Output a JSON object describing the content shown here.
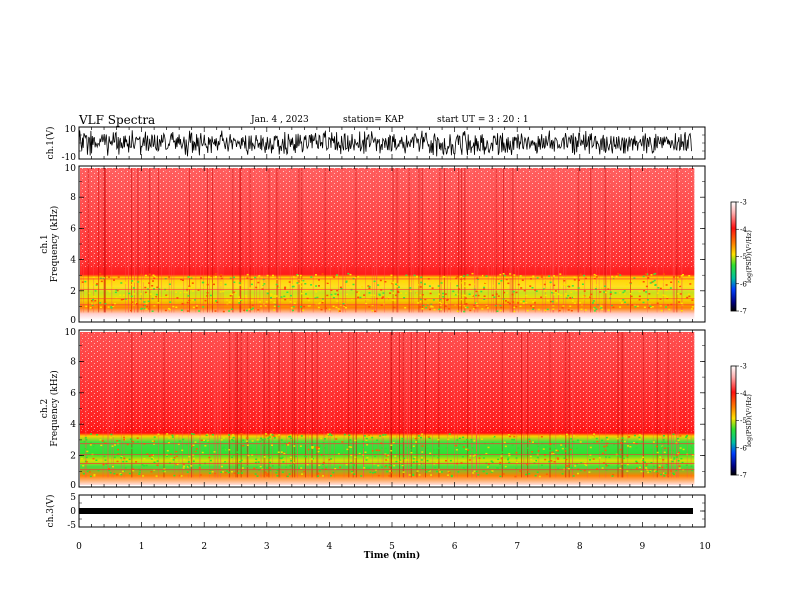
{
  "header": {
    "title": "VLF Spectra",
    "date": "Jan. 4 , 2023",
    "station": "station= KAP",
    "start_ut": "start UT = 3 : 20 : 1"
  },
  "chart_data": [
    {
      "type": "line",
      "panel": "ch1-waveform",
      "ylabel": "ch.1(V)",
      "ylim": [
        -10,
        10
      ],
      "yticks": [
        "10",
        "-10"
      ],
      "xlim": [
        0,
        10
      ],
      "description_of_series": "dense oscillating voltage signal"
    },
    {
      "type": "heatmap",
      "panel": "ch1-spectrogram",
      "ylabel": "ch.1 Frequency (kHz)",
      "ylim": [
        0,
        10
      ],
      "yticks": [
        "0",
        "2",
        "4",
        "6",
        "8",
        "10"
      ],
      "xlim": [
        0,
        10
      ],
      "data_end_min": 9.83,
      "colorbar": {
        "label": "log(PSD)(V²/Hz)",
        "range": [
          -7,
          -3
        ],
        "ticks": [
          "-3",
          "-4",
          "-5",
          "-6",
          "-7"
        ]
      }
    },
    {
      "type": "heatmap",
      "panel": "ch2-spectrogram",
      "ylabel": "ch.2 Frequency (kHz)",
      "ylim": [
        0,
        10
      ],
      "yticks": [
        "0",
        "2",
        "4",
        "6",
        "8",
        "10"
      ],
      "xlim": [
        0,
        10
      ],
      "data_end_min": 9.83,
      "colorbar": {
        "label": "log(PSD)(V²/Hz)",
        "range": [
          -7,
          -3
        ],
        "ticks": [
          "-3",
          "-4",
          "-5",
          "-6",
          "-7"
        ]
      }
    },
    {
      "type": "line",
      "panel": "ch3-waveform",
      "ylabel": "ch.3(V)",
      "ylim": [
        -5,
        5
      ],
      "yticks": [
        "5",
        "0",
        "-5"
      ],
      "xlim": [
        0,
        10
      ],
      "xlabel": "Time (min)",
      "xticks": [
        "0",
        "1",
        "2",
        "3",
        "4",
        "5",
        "6",
        "7",
        "8",
        "9",
        "10"
      ]
    }
  ],
  "colors": {
    "high": "#ff2020",
    "mid": "#ffe000",
    "low_mid": "#30e030",
    "low": "#0020ff",
    "min": "#000000",
    "background": "#ffffff"
  }
}
